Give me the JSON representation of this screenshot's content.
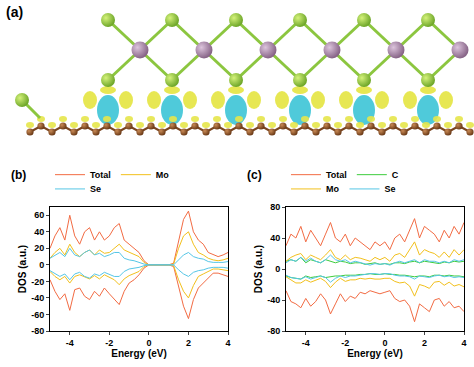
{
  "structure": {
    "label": "(a)"
  },
  "chart_data": [
    {
      "type": "line",
      "title": "(b)",
      "x_label": "Energy (eV)",
      "y_label": "DOS (a.u.)",
      "x": [
        -5,
        -4.75,
        -4.5,
        -4.25,
        -4,
        -3.75,
        -3.5,
        -3.25,
        -3,
        -2.75,
        -2.5,
        -2.25,
        -2,
        -1.75,
        -1.5,
        -1.25,
        -1,
        -0.75,
        -0.5,
        -0.25,
        0,
        0.25,
        0.5,
        0.75,
        1,
        1.25,
        1.5,
        1.75,
        2,
        2.25,
        2.5,
        2.75,
        3,
        3.25,
        3.5,
        3.75,
        4
      ],
      "xlim": [
        -5,
        4
      ],
      "xticks": [
        -4,
        -2,
        0,
        2,
        4
      ],
      "ylim": [
        -80,
        70
      ],
      "yticks": [
        -80,
        -60,
        -40,
        -20,
        0,
        20,
        40,
        60
      ],
      "grid": false,
      "legend": "top",
      "series": [
        {
          "name": "Total",
          "color": "#f26b43",
          "values": [
            20,
            35,
            45,
            30,
            60,
            35,
            25,
            40,
            45,
            30,
            40,
            30,
            35,
            45,
            50,
            30,
            25,
            20,
            15,
            5,
            0,
            0,
            0,
            0,
            0,
            2,
            30,
            55,
            65,
            40,
            30,
            25,
            15,
            12,
            10,
            12,
            15
          ],
          "spin_down": [
            -18,
            -32,
            -42,
            -35,
            -55,
            -30,
            -28,
            -38,
            -42,
            -32,
            -38,
            -28,
            -35,
            -42,
            -48,
            -32,
            -22,
            -18,
            -12,
            -4,
            0,
            0,
            0,
            0,
            0,
            -2,
            -28,
            -50,
            -65,
            -42,
            -28,
            -22,
            -15,
            -10,
            -10,
            -12,
            -14
          ]
        },
        {
          "name": "Mo",
          "color": "#f2c01c",
          "values": [
            8,
            15,
            20,
            12,
            25,
            15,
            10,
            15,
            18,
            12,
            18,
            14,
            15,
            20,
            25,
            18,
            15,
            12,
            10,
            3,
            0,
            0,
            0,
            0,
            0,
            1,
            20,
            35,
            40,
            25,
            15,
            12,
            8,
            6,
            5,
            6,
            8
          ],
          "spin_down": [
            -8,
            -14,
            -18,
            -14,
            -22,
            -14,
            -12,
            -15,
            -17,
            -13,
            -17,
            -12,
            -15,
            -18,
            -24,
            -17,
            -13,
            -10,
            -8,
            -2,
            0,
            0,
            0,
            0,
            0,
            -1,
            -18,
            -32,
            -40,
            -25,
            -14,
            -11,
            -8,
            -5,
            -5,
            -6,
            -7
          ]
        },
        {
          "name": "Se",
          "color": "#56c6e6",
          "values": [
            8,
            12,
            15,
            10,
            20,
            12,
            10,
            15,
            18,
            12,
            14,
            10,
            12,
            15,
            15,
            8,
            6,
            5,
            3,
            1,
            0,
            0,
            0,
            0,
            0,
            0,
            6,
            12,
            15,
            10,
            8,
            7,
            4,
            3,
            3,
            3,
            4
          ],
          "spin_down": [
            -7,
            -11,
            -14,
            -11,
            -18,
            -11,
            -9,
            -14,
            -16,
            -11,
            -13,
            -9,
            -12,
            -14,
            -14,
            -8,
            -5,
            -4,
            -3,
            -1,
            0,
            0,
            0,
            0,
            0,
            0,
            -6,
            -11,
            -14,
            -9,
            -7,
            -6,
            -4,
            -3,
            -3,
            -3,
            -4
          ]
        }
      ]
    },
    {
      "type": "line",
      "title": "(c)",
      "x_label": "Energy (eV)",
      "y_label": "DOS (a.u.)",
      "x": [
        -5,
        -4.75,
        -4.5,
        -4.25,
        -4,
        -3.75,
        -3.5,
        -3.25,
        -3,
        -2.75,
        -2.5,
        -2.25,
        -2,
        -1.75,
        -1.5,
        -1.25,
        -1,
        -0.75,
        -0.5,
        -0.25,
        0,
        0.25,
        0.5,
        0.75,
        1,
        1.25,
        1.5,
        1.75,
        2,
        2.25,
        2.5,
        2.75,
        3,
        3.25,
        3.5,
        3.75,
        4
      ],
      "xlim": [
        -5,
        4
      ],
      "xticks": [
        -4,
        -2,
        0,
        2,
        4
      ],
      "ylim": [
        -80,
        80
      ],
      "yticks": [
        -80,
        -40,
        0,
        40,
        80
      ],
      "grid": false,
      "legend": "top",
      "series": [
        {
          "name": "Total",
          "color": "#f26b43",
          "values": [
            30,
            45,
            40,
            55,
            35,
            50,
            40,
            30,
            45,
            60,
            40,
            35,
            45,
            30,
            40,
            35,
            30,
            25,
            35,
            30,
            35,
            25,
            40,
            45,
            35,
            50,
            65,
            40,
            55,
            50,
            45,
            35,
            50,
            40,
            55,
            45,
            60
          ],
          "spin_down": [
            -28,
            -42,
            -45,
            -50,
            -38,
            -48,
            -42,
            -32,
            -40,
            -58,
            -45,
            -32,
            -42,
            -35,
            -38,
            -30,
            -32,
            -28,
            -30,
            -32,
            -30,
            -28,
            -38,
            -42,
            -40,
            -48,
            -68,
            -45,
            -50,
            -55,
            -40,
            -38,
            -48,
            -42,
            -50,
            -48,
            -55
          ]
        },
        {
          "name": "C",
          "color": "#3dcc3d",
          "values": [
            10,
            12,
            10,
            15,
            8,
            12,
            10,
            8,
            12,
            10,
            8,
            10,
            9,
            7,
            8,
            8,
            6,
            7,
            8,
            6,
            7,
            6,
            8,
            8,
            7,
            9,
            10,
            8,
            10,
            9,
            8,
            7,
            9,
            8,
            10,
            9,
            10
          ],
          "spin_down": [
            -9,
            -11,
            -12,
            -13,
            -9,
            -11,
            -10,
            -9,
            -11,
            -10,
            -9,
            -9,
            -8,
            -8,
            -8,
            -7,
            -7,
            -6,
            -7,
            -7,
            -6,
            -7,
            -7,
            -8,
            -8,
            -9,
            -10,
            -9,
            -9,
            -10,
            -8,
            -8,
            -9,
            -8,
            -9,
            -9,
            -10
          ]
        },
        {
          "name": "Mo",
          "color": "#f2c01c",
          "values": [
            10,
            15,
            18,
            20,
            12,
            18,
            15,
            12,
            18,
            25,
            15,
            12,
            18,
            12,
            15,
            14,
            12,
            10,
            15,
            12,
            15,
            10,
            18,
            20,
            15,
            25,
            35,
            18,
            25,
            22,
            20,
            15,
            22,
            15,
            25,
            18,
            25
          ],
          "spin_down": [
            -10,
            -14,
            -18,
            -18,
            -14,
            -17,
            -15,
            -12,
            -16,
            -24,
            -17,
            -12,
            -16,
            -14,
            -14,
            -12,
            -13,
            -12,
            -13,
            -13,
            -12,
            -12,
            -16,
            -18,
            -17,
            -22,
            -35,
            -20,
            -22,
            -25,
            -17,
            -16,
            -21,
            -17,
            -22,
            -20,
            -23
          ]
        },
        {
          "name": "Se",
          "color": "#56c6e6",
          "values": [
            8,
            12,
            10,
            15,
            10,
            14,
            10,
            8,
            12,
            18,
            12,
            10,
            12,
            8,
            10,
            8,
            6,
            5,
            7,
            6,
            7,
            5,
            8,
            10,
            8,
            10,
            12,
            8,
            12,
            10,
            10,
            8,
            10,
            8,
            12,
            10,
            12
          ],
          "spin_down": [
            -8,
            -11,
            -12,
            -13,
            -10,
            -13,
            -11,
            -9,
            -11,
            -17,
            -12,
            -9,
            -11,
            -9,
            -9,
            -8,
            -7,
            -6,
            -6,
            -7,
            -6,
            -6,
            -8,
            -9,
            -9,
            -10,
            -13,
            -9,
            -10,
            -11,
            -9,
            -8,
            -10,
            -9,
            -11,
            -10,
            -11
          ]
        }
      ]
    }
  ]
}
